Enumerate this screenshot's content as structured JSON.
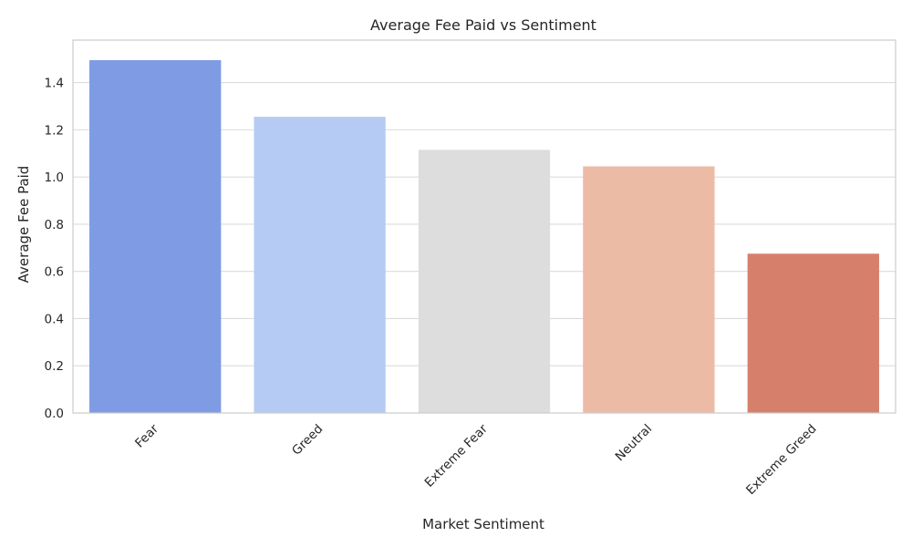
{
  "chart_data": {
    "type": "bar",
    "title": "Average Fee Paid vs Sentiment",
    "xlabel": "Market Sentiment",
    "ylabel": "Average Fee Paid",
    "categories": [
      "Fear",
      "Greed",
      "Extreme Fear",
      "Neutral",
      "Extreme Greed"
    ],
    "values": [
      1.495,
      1.255,
      1.115,
      1.045,
      0.675
    ],
    "colors": [
      "#7f9be4",
      "#b6cbf4",
      "#dddddd",
      "#ecbba6",
      "#d6806b"
    ],
    "ylim": [
      0,
      1.58
    ],
    "yticks": [
      0.0,
      0.2,
      0.4,
      0.6,
      0.8,
      1.0,
      1.2,
      1.4
    ],
    "ytick_labels": [
      "0.0",
      "0.2",
      "0.4",
      "0.6",
      "0.8",
      "1.0",
      "1.2",
      "1.4"
    ],
    "grid": "horizontal",
    "style": {
      "grid_color": "#dcdcdc",
      "frame_color": "#cccccc",
      "text_color": "#262626"
    }
  }
}
